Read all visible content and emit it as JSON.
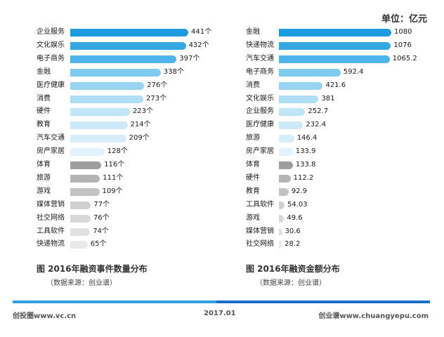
{
  "unit_label": "单位：亿元",
  "chart_data": [
    {
      "type": "bar",
      "orientation": "horizontal",
      "title": "图 2016年融资事件数量分布",
      "source": "（数据来源：创业谱）",
      "categories": [
        "企业服务",
        "文化娱乐",
        "电子商务",
        "金融",
        "医疗健康",
        "消费",
        "硬件",
        "教育",
        "汽车交通",
        "房产家居",
        "体育",
        "旅游",
        "游戏",
        "媒体营销",
        "社交网络",
        "工具软件",
        "快递物流"
      ],
      "values": [
        441,
        432,
        397,
        338,
        276,
        273,
        223,
        214,
        209,
        128,
        116,
        111,
        109,
        77,
        76,
        74,
        65
      ],
      "value_labels": [
        "441个",
        "432个",
        "397个",
        "338个",
        "276个",
        "273个",
        "223个",
        "214个",
        "209个",
        "128个",
        "116个",
        "111个",
        "109个",
        "77个",
        "76个",
        "74个",
        "65个"
      ],
      "colors": [
        "#1e9be0",
        "#35a8e4",
        "#4eb3e8",
        "#7ecbef",
        "#97d4f1",
        "#b0def4",
        "#c0e5f6",
        "#cde9f8",
        "#d7eef9",
        "#e3f3fb",
        "#9e9e9e",
        "#b4b4b4",
        "#c2c2c2",
        "#d0d0d0",
        "#d8d8d8",
        "#e1e1e1",
        "#e9e9e9"
      ],
      "xlim": [
        0,
        441
      ]
    },
    {
      "type": "bar",
      "orientation": "horizontal",
      "title": "图 2016年融资金额分布",
      "source": "（数据来源：创业谱）",
      "categories": [
        "金融",
        "快递物流",
        "汽车交通",
        "电子商务",
        "消费",
        "文化娱乐",
        "企业服务",
        "医疗健康",
        "旅游",
        "房产家居",
        "体育",
        "硬件",
        "教育",
        "工具软件",
        "游戏",
        "媒体营销",
        "社交网络"
      ],
      "values": [
        1080,
        1076,
        1065.2,
        592.4,
        421.6,
        381,
        252.7,
        232.4,
        146.4,
        133.9,
        133.8,
        112.2,
        92.9,
        54.03,
        49.6,
        30.6,
        28.2
      ],
      "value_labels": [
        "1080",
        "1076",
        "1065.2",
        "592.4",
        "421.6",
        "381",
        "252.7",
        "232.4",
        "146.4",
        "133.9",
        "133.8",
        "112.2",
        "92.9",
        "54.03",
        "49.6",
        "30.6",
        "28.2"
      ],
      "colors": [
        "#1e9be0",
        "#35a8e4",
        "#4eb3e8",
        "#7ecbef",
        "#97d4f1",
        "#b0def4",
        "#c0e5f6",
        "#cde9f8",
        "#d7eef9",
        "#e3f3fb",
        "#9e9e9e",
        "#b4b4b4",
        "#c2c2c2",
        "#d0d0d0",
        "#d8d8d8",
        "#e1e1e1",
        "#e9e9e9"
      ],
      "xlim": [
        0,
        1080
      ]
    }
  ],
  "footer": {
    "left": "创投圈www.vc.cn",
    "center": "2017.01",
    "right": "创业谱www.chuangyepu.com"
  }
}
